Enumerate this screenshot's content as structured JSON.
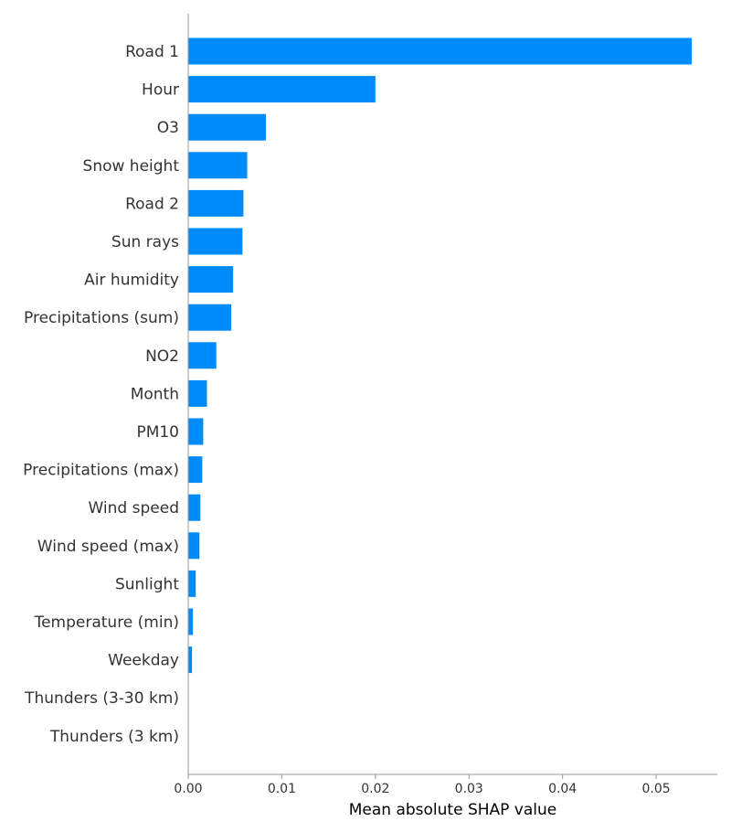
{
  "chart_data": {
    "type": "bar",
    "orientation": "horizontal",
    "categories": [
      "Road 1",
      "Hour",
      "O3",
      "Snow height",
      "Road 2",
      "Sun rays",
      "Air humidity",
      "Precipitations (sum)",
      "NO2",
      "Month",
      "PM10",
      "Precipitations (max)",
      "Wind speed",
      "Wind speed (max)",
      "Sunlight",
      "Temperature (min)",
      "Weekday",
      "Thunders (3-30 km)",
      "Thunders (3 km)"
    ],
    "values": [
      0.0538,
      0.02,
      0.0083,
      0.0063,
      0.0059,
      0.0058,
      0.0048,
      0.0046,
      0.003,
      0.002,
      0.0016,
      0.0015,
      0.0013,
      0.0012,
      0.0008,
      0.0005,
      0.0004,
      0.0,
      0.0
    ],
    "xlabel": "Mean absolute SHAP value",
    "ylabel": "",
    "title": "",
    "xlim": [
      0,
      0.0565
    ],
    "xticks": [
      "0.00",
      "0.01",
      "0.02",
      "0.03",
      "0.04",
      "0.05"
    ],
    "xtick_values": [
      0,
      0.01,
      0.02,
      0.03,
      0.04,
      0.05
    ],
    "bar_color": "#008bfb",
    "axis_color": "#999999",
    "grid": false
  }
}
